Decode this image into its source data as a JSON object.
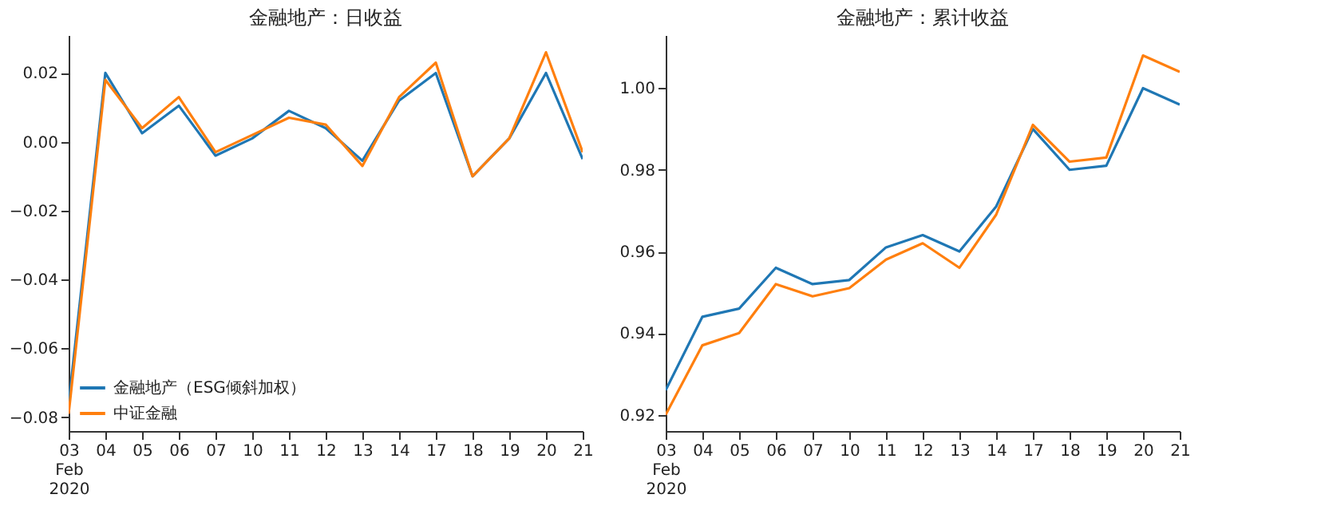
{
  "chart_data": [
    {
      "type": "line",
      "title": "金融地产：日收益",
      "categories": [
        "03\nFeb\n2020",
        "04",
        "05",
        "06",
        "07",
        "10",
        "11",
        "12",
        "13",
        "14",
        "17",
        "18",
        "19",
        "20",
        "21"
      ],
      "series": [
        {
          "name": "金融地产（ESG倾斜加权）",
          "color": "#1f77b4",
          "values": [
            -0.076,
            0.02,
            0.0025,
            0.0105,
            -0.004,
            0.001,
            0.009,
            0.004,
            -0.0055,
            0.012,
            0.02,
            -0.01,
            0.001,
            0.02,
            -0.005
          ]
        },
        {
          "name": "中证金融",
          "color": "#ff7f0e",
          "values": [
            -0.079,
            0.018,
            0.004,
            0.013,
            -0.003,
            0.002,
            0.007,
            0.005,
            -0.007,
            0.013,
            0.023,
            -0.01,
            0.001,
            0.026,
            -0.003
          ]
        }
      ],
      "ylim": [
        -0.084,
        0.031
      ],
      "yticks": [
        {
          "value": -0.08,
          "label": "−0.08"
        },
        {
          "value": -0.06,
          "label": "−0.06"
        },
        {
          "value": -0.04,
          "label": "−0.04"
        },
        {
          "value": -0.02,
          "label": "−0.02"
        },
        {
          "value": 0,
          "label": "0.00"
        },
        {
          "value": 0.02,
          "label": "0.02"
        }
      ],
      "grid": false,
      "legend": "bottom left"
    },
    {
      "type": "line",
      "title": "金融地产：累计收益",
      "categories": [
        "03\nFeb\n2020",
        "04",
        "05",
        "06",
        "07",
        "10",
        "11",
        "12",
        "13",
        "14",
        "17",
        "18",
        "19",
        "20",
        "21"
      ],
      "series": [
        {
          "color": "#1f77b4",
          "values": [
            0.926,
            0.944,
            0.946,
            0.956,
            0.952,
            0.953,
            0.961,
            0.964,
            0.96,
            0.971,
            0.99,
            0.98,
            0.981,
            1.0,
            0.996
          ]
        },
        {
          "color": "#ff7f0e",
          "values": [
            0.92,
            0.937,
            0.94,
            0.952,
            0.949,
            0.951,
            0.958,
            0.962,
            0.956,
            0.969,
            0.991,
            0.982,
            0.983,
            1.008,
            1.004
          ]
        }
      ],
      "ylim": [
        0.916,
        1.013
      ],
      "yticks": [
        {
          "value": 0.92,
          "label": "0.92"
        },
        {
          "value": 0.94,
          "label": "0.94"
        },
        {
          "value": 0.96,
          "label": "0.96"
        },
        {
          "value": 0.98,
          "label": "0.98"
        },
        {
          "value": 1.0,
          "label": "1.00"
        }
      ],
      "grid": false,
      "legend": false
    }
  ]
}
